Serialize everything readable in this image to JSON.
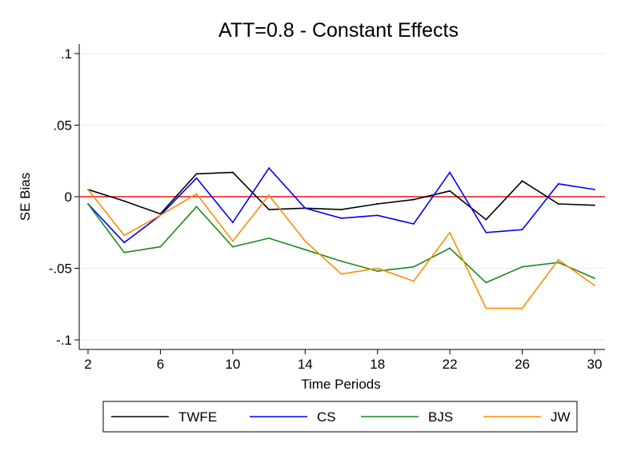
{
  "chart_data": {
    "type": "line",
    "title": "ATT=0.8 - Constant Effects",
    "xlabel": "Time Periods",
    "ylabel": "SE Bias",
    "xlim": [
      2,
      30
    ],
    "ylim": [
      -0.1,
      0.1
    ],
    "x_ticks": [
      2,
      6,
      10,
      14,
      18,
      22,
      26,
      30
    ],
    "x_tick_labels": [
      "2",
      "6",
      "10",
      "14",
      "18",
      "22",
      "26",
      "30"
    ],
    "y_ticks": [
      -0.1,
      -0.05,
      0,
      0.05,
      0.1
    ],
    "y_tick_labels": [
      "-.1",
      "-.05",
      "0",
      ".05",
      ".1"
    ],
    "grid": "horizontal",
    "reference_line": {
      "y": 0,
      "color": "#e8141a"
    },
    "legend_position": "bottom",
    "x": [
      2,
      4,
      6,
      8,
      10,
      12,
      14,
      16,
      18,
      20,
      22,
      24,
      26,
      28,
      30
    ],
    "series": [
      {
        "name": "TWFE",
        "color": "#000000",
        "values": [
          0.005,
          -0.003,
          -0.012,
          0.016,
          0.017,
          -0.009,
          -0.008,
          -0.009,
          -0.005,
          -0.002,
          0.004,
          -0.016,
          0.011,
          -0.005,
          -0.006
        ]
      },
      {
        "name": "CS",
        "color": "#0000ff",
        "values": [
          -0.005,
          -0.032,
          -0.013,
          0.013,
          -0.018,
          0.02,
          -0.008,
          -0.015,
          -0.013,
          -0.019,
          0.017,
          -0.025,
          -0.023,
          0.009,
          0.005
        ]
      },
      {
        "name": "BJS",
        "color": "#1b8a1b",
        "values": [
          -0.005,
          -0.039,
          -0.035,
          -0.007,
          -0.035,
          -0.029,
          -0.037,
          -0.045,
          -0.052,
          -0.049,
          -0.036,
          -0.06,
          -0.049,
          -0.046,
          -0.057
        ]
      },
      {
        "name": "JW",
        "color": "#ff8c00",
        "values": [
          0.005,
          -0.027,
          -0.013,
          0.002,
          -0.031,
          0.001,
          -0.031,
          -0.054,
          -0.05,
          -0.059,
          -0.025,
          -0.078,
          -0.078,
          -0.044,
          -0.062
        ]
      }
    ]
  }
}
